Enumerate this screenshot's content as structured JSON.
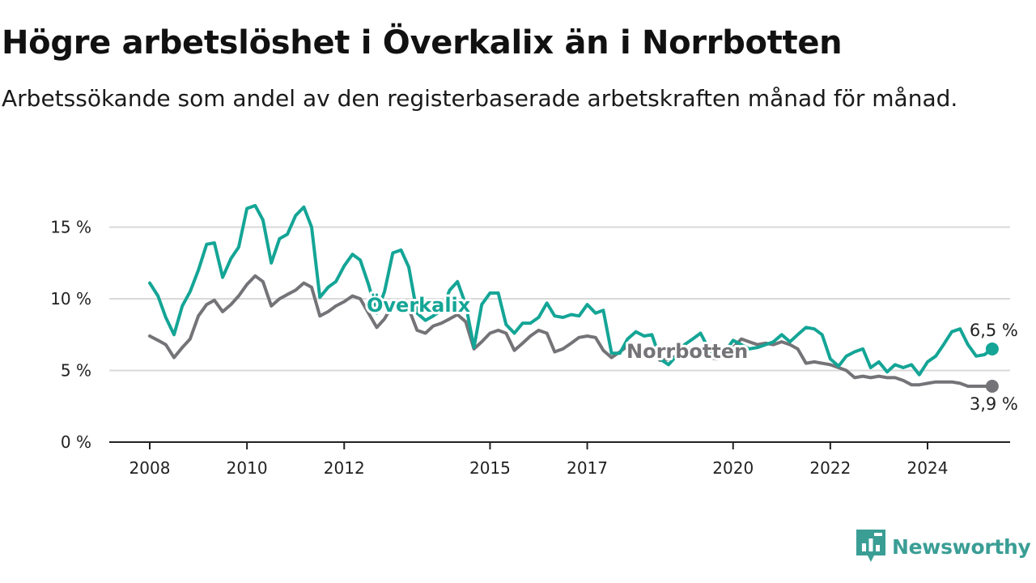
{
  "header": {
    "title": "Högre arbetslöshet i Överkalix än i Norrbotten",
    "subtitle": "Arbetssökande som andel av den registerbaserade arbetskraften månad för månad."
  },
  "brand": {
    "name": "Newsworthy",
    "icon": "newsworthy-logo-icon",
    "color": "#3a9e95"
  },
  "chart_data": {
    "type": "line",
    "title": "Högre arbetslöshet i Överkalix än i Norrbotten",
    "subtitle": "Arbetssökande som andel av den registerbaserade arbetskraften månad för månad.",
    "xlabel": "",
    "ylabel": "",
    "x_ticks": [
      "2008",
      "2010",
      "2012",
      "2015",
      "2017",
      "2020",
      "2022",
      "2024"
    ],
    "y_ticks": [
      "0 %",
      "5 %",
      "10 %",
      "15 %"
    ],
    "ylim": [
      0,
      17
    ],
    "xlim": [
      2007.5,
      2025.9
    ],
    "grid": "horizontal",
    "legend": "inline labels",
    "series": [
      {
        "name": "Överkalix",
        "color": "#14a596",
        "end_label": "6,5 %",
        "points": [
          [
            2008.0,
            11.1
          ],
          [
            2008.17,
            10.2
          ],
          [
            2008.33,
            8.7
          ],
          [
            2008.5,
            7.5
          ],
          [
            2008.67,
            9.5
          ],
          [
            2008.83,
            10.5
          ],
          [
            2009.0,
            12.0
          ],
          [
            2009.17,
            13.8
          ],
          [
            2009.33,
            13.9
          ],
          [
            2009.5,
            11.5
          ],
          [
            2009.67,
            12.8
          ],
          [
            2009.83,
            13.6
          ],
          [
            2010.0,
            16.3
          ],
          [
            2010.17,
            16.5
          ],
          [
            2010.33,
            15.5
          ],
          [
            2010.5,
            12.5
          ],
          [
            2010.67,
            14.2
          ],
          [
            2010.83,
            14.5
          ],
          [
            2011.0,
            15.8
          ],
          [
            2011.17,
            16.4
          ],
          [
            2011.33,
            15.0
          ],
          [
            2011.5,
            10.1
          ],
          [
            2011.67,
            10.8
          ],
          [
            2011.83,
            11.2
          ],
          [
            2012.0,
            12.3
          ],
          [
            2012.17,
            13.1
          ],
          [
            2012.33,
            12.7
          ],
          [
            2012.5,
            11.0
          ],
          [
            2012.67,
            9.0
          ],
          [
            2012.83,
            10.5
          ],
          [
            2013.0,
            13.2
          ],
          [
            2013.17,
            13.4
          ],
          [
            2013.33,
            12.2
          ],
          [
            2013.5,
            9.0
          ],
          [
            2013.67,
            8.5
          ],
          [
            2013.83,
            8.8
          ],
          [
            2014.0,
            9.2
          ],
          [
            2014.17,
            10.6
          ],
          [
            2014.33,
            11.2
          ],
          [
            2014.5,
            9.6
          ],
          [
            2014.67,
            6.6
          ],
          [
            2014.83,
            9.6
          ],
          [
            2015.0,
            10.4
          ],
          [
            2015.17,
            10.4
          ],
          [
            2015.33,
            8.2
          ],
          [
            2015.5,
            7.6
          ],
          [
            2015.67,
            8.3
          ],
          [
            2015.83,
            8.3
          ],
          [
            2016.0,
            8.7
          ],
          [
            2016.17,
            9.7
          ],
          [
            2016.33,
            8.8
          ],
          [
            2016.5,
            8.7
          ],
          [
            2016.67,
            8.9
          ],
          [
            2016.83,
            8.8
          ],
          [
            2017.0,
            9.6
          ],
          [
            2017.17,
            9.0
          ],
          [
            2017.33,
            9.2
          ],
          [
            2017.5,
            6.2
          ],
          [
            2017.67,
            6.2
          ],
          [
            2017.83,
            7.2
          ],
          [
            2018.0,
            7.7
          ],
          [
            2018.17,
            7.4
          ],
          [
            2018.33,
            7.5
          ],
          [
            2018.5,
            5.8
          ],
          [
            2018.67,
            5.4
          ],
          [
            2018.83,
            6.0
          ],
          [
            2019.0,
            6.8
          ],
          [
            2019.17,
            7.2
          ],
          [
            2019.33,
            7.6
          ],
          [
            2019.5,
            6.5
          ],
          [
            2019.67,
            5.9
          ],
          [
            2019.83,
            6.3
          ],
          [
            2020.0,
            7.1
          ],
          [
            2020.17,
            6.8
          ],
          [
            2020.33,
            6.5
          ],
          [
            2020.5,
            6.6
          ],
          [
            2020.67,
            6.8
          ],
          [
            2020.83,
            7.0
          ],
          [
            2021.0,
            7.5
          ],
          [
            2021.17,
            7.0
          ],
          [
            2021.33,
            7.5
          ],
          [
            2021.5,
            8.0
          ],
          [
            2021.67,
            7.9
          ],
          [
            2021.83,
            7.5
          ],
          [
            2022.0,
            5.8
          ],
          [
            2022.17,
            5.3
          ],
          [
            2022.33,
            6.0
          ],
          [
            2022.5,
            6.3
          ],
          [
            2022.67,
            6.5
          ],
          [
            2022.83,
            5.2
          ],
          [
            2023.0,
            5.6
          ],
          [
            2023.17,
            4.9
          ],
          [
            2023.33,
            5.4
          ],
          [
            2023.5,
            5.2
          ],
          [
            2023.67,
            5.4
          ],
          [
            2023.83,
            4.7
          ],
          [
            2024.0,
            5.6
          ],
          [
            2024.17,
            6.0
          ],
          [
            2024.33,
            6.8
          ],
          [
            2024.5,
            7.7
          ],
          [
            2024.67,
            7.9
          ],
          [
            2024.83,
            6.8
          ],
          [
            2025.0,
            6.0
          ],
          [
            2025.17,
            6.1
          ],
          [
            2025.33,
            6.5
          ]
        ]
      },
      {
        "name": "Norrbotten",
        "color": "#747478",
        "end_label": "3,9 %",
        "points": [
          [
            2008.0,
            7.4
          ],
          [
            2008.17,
            7.1
          ],
          [
            2008.33,
            6.8
          ],
          [
            2008.5,
            5.9
          ],
          [
            2008.67,
            6.6
          ],
          [
            2008.83,
            7.2
          ],
          [
            2009.0,
            8.8
          ],
          [
            2009.17,
            9.6
          ],
          [
            2009.33,
            9.9
          ],
          [
            2009.5,
            9.1
          ],
          [
            2009.67,
            9.6
          ],
          [
            2009.83,
            10.2
          ],
          [
            2010.0,
            11.0
          ],
          [
            2010.17,
            11.6
          ],
          [
            2010.33,
            11.2
          ],
          [
            2010.5,
            9.5
          ],
          [
            2010.67,
            10.0
          ],
          [
            2010.83,
            10.3
          ],
          [
            2011.0,
            10.6
          ],
          [
            2011.17,
            11.1
          ],
          [
            2011.33,
            10.8
          ],
          [
            2011.5,
            8.8
          ],
          [
            2011.67,
            9.1
          ],
          [
            2011.83,
            9.5
          ],
          [
            2012.0,
            9.8
          ],
          [
            2012.17,
            10.2
          ],
          [
            2012.33,
            10.0
          ],
          [
            2012.5,
            9.0
          ],
          [
            2012.67,
            8.0
          ],
          [
            2012.83,
            8.6
          ],
          [
            2013.0,
            9.6
          ],
          [
            2013.17,
            9.7
          ],
          [
            2013.33,
            9.3
          ],
          [
            2013.5,
            7.8
          ],
          [
            2013.67,
            7.6
          ],
          [
            2013.83,
            8.1
          ],
          [
            2014.0,
            8.3
          ],
          [
            2014.17,
            8.6
          ],
          [
            2014.33,
            8.9
          ],
          [
            2014.5,
            8.4
          ],
          [
            2014.67,
            6.5
          ],
          [
            2014.83,
            7.0
          ],
          [
            2015.0,
            7.6
          ],
          [
            2015.17,
            7.8
          ],
          [
            2015.33,
            7.6
          ],
          [
            2015.5,
            6.4
          ],
          [
            2015.67,
            6.9
          ],
          [
            2015.83,
            7.4
          ],
          [
            2016.0,
            7.8
          ],
          [
            2016.17,
            7.6
          ],
          [
            2016.33,
            6.3
          ],
          [
            2016.5,
            6.5
          ],
          [
            2016.67,
            6.9
          ],
          [
            2016.83,
            7.3
          ],
          [
            2017.0,
            7.4
          ],
          [
            2017.17,
            7.3
          ],
          [
            2017.33,
            6.4
          ],
          [
            2017.5,
            5.9
          ],
          [
            2017.67,
            6.3
          ],
          [
            2017.83,
            6.7
          ],
          [
            2018.0,
            6.8
          ],
          [
            2018.17,
            6.5
          ],
          [
            2018.33,
            6.2
          ],
          [
            2018.5,
            5.7
          ],
          [
            2018.67,
            5.8
          ],
          [
            2018.83,
            6.0
          ],
          [
            2019.0,
            6.4
          ],
          [
            2019.17,
            6.6
          ],
          [
            2019.33,
            6.5
          ],
          [
            2019.5,
            5.9
          ],
          [
            2019.67,
            5.8
          ],
          [
            2019.83,
            6.1
          ],
          [
            2020.0,
            6.6
          ],
          [
            2020.17,
            7.2
          ],
          [
            2020.33,
            7.0
          ],
          [
            2020.5,
            6.8
          ],
          [
            2020.67,
            6.9
          ],
          [
            2020.83,
            6.8
          ],
          [
            2021.0,
            7.0
          ],
          [
            2021.17,
            6.8
          ],
          [
            2021.33,
            6.5
          ],
          [
            2021.5,
            5.5
          ],
          [
            2021.67,
            5.6
          ],
          [
            2021.83,
            5.5
          ],
          [
            2022.0,
            5.4
          ],
          [
            2022.17,
            5.2
          ],
          [
            2022.33,
            5.0
          ],
          [
            2022.5,
            4.5
          ],
          [
            2022.67,
            4.6
          ],
          [
            2022.83,
            4.5
          ],
          [
            2023.0,
            4.6
          ],
          [
            2023.17,
            4.5
          ],
          [
            2023.33,
            4.5
          ],
          [
            2023.5,
            4.3
          ],
          [
            2023.67,
            4.0
          ],
          [
            2023.83,
            4.0
          ],
          [
            2024.0,
            4.1
          ],
          [
            2024.17,
            4.2
          ],
          [
            2024.33,
            4.2
          ],
          [
            2024.5,
            4.2
          ],
          [
            2024.67,
            4.1
          ],
          [
            2024.83,
            3.9
          ],
          [
            2025.0,
            3.9
          ],
          [
            2025.17,
            3.9
          ],
          [
            2025.33,
            3.9
          ]
        ]
      }
    ]
  }
}
